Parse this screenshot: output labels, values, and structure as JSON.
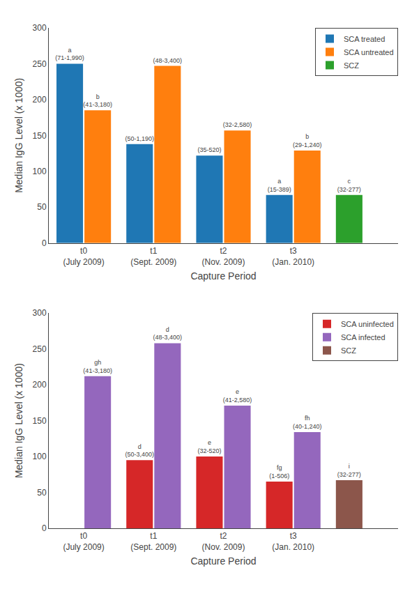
{
  "chart_data": [
    {
      "type": "bar",
      "categories": [
        "t0\n(July 2009)",
        "t1\n(Sept. 2009)",
        "t2\n(Nov. 2009)",
        "t3\n(Jan. 2010)",
        null
      ],
      "series": [
        {
          "name": "SCA treated",
          "values": [
            250,
            138,
            122,
            67,
            null
          ],
          "annotations": [
            "a\n(71-1,990)",
            "(50-1,190)",
            "(35-520)",
            "a\n(15-389)",
            null
          ]
        },
        {
          "name": "SCA untreated",
          "values": [
            185,
            247,
            157,
            129,
            null
          ],
          "annotations": [
            "b\n(41-3,180)",
            "(48-3,400)",
            "(32-2,580)",
            "b\n(29-1,240)",
            null
          ]
        },
        {
          "name": "SCZ",
          "values": [
            null,
            null,
            null,
            null,
            67
          ],
          "annotations": [
            null,
            null,
            null,
            null,
            "c\n(32-277)"
          ]
        }
      ],
      "xlabel": "Capture Period",
      "ylabel": "Median IgG Level (x 1000)",
      "ylim": [
        0,
        300
      ],
      "yticks": [
        0,
        50,
        100,
        150,
        200,
        250,
        300
      ],
      "grid": false,
      "legend": "upper right"
    },
    {
      "type": "bar",
      "categories": [
        "t0\n(July 2009)",
        "t1\n(Sept. 2009)",
        "t2\n(Nov. 2009)",
        "t3\n(Jan. 2010)",
        null
      ],
      "series": [
        {
          "name": "SCA uninfected",
          "values": [
            null,
            95,
            100,
            65,
            null
          ],
          "annotations": [
            null,
            "d\n(50-3,400)",
            "e\n(32-520)",
            "fg\n(1-506)",
            null
          ]
        },
        {
          "name": "SCA infected",
          "values": [
            212,
            258,
            171,
            134,
            null
          ],
          "annotations": [
            "gh\n(41-3,180)",
            "d\n(48-3,400)",
            "e\n(41-2,580)",
            "fh\n(40-1,240)",
            null
          ]
        },
        {
          "name": "SCZ",
          "values": [
            null,
            null,
            null,
            null,
            67
          ],
          "annotations": [
            null,
            null,
            null,
            null,
            "i\n(32-277)"
          ]
        }
      ],
      "xlabel": "Capture Period",
      "ylabel": "Median IgG Level (x 1000)",
      "ylim": [
        0,
        300
      ],
      "yticks": [
        0,
        50,
        100,
        150,
        200,
        250,
        300
      ],
      "grid": false,
      "legend": "upper right"
    }
  ]
}
